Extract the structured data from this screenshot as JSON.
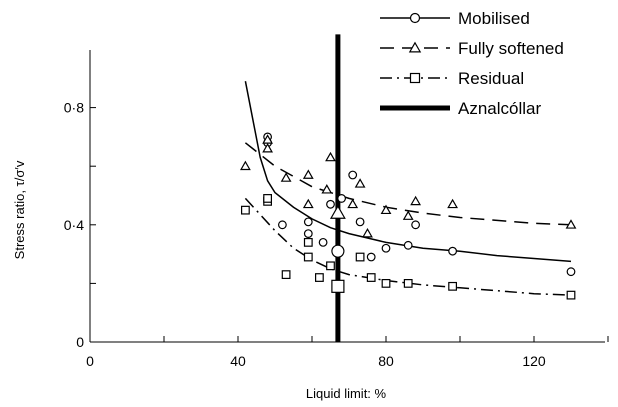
{
  "chart_data": {
    "type": "scatter",
    "xlabel": "Liquid limit: %",
    "ylabel": "Stress ratio, τ/σ′v",
    "xlim": [
      0,
      140
    ],
    "ylim": [
      0,
      1.0
    ],
    "x_ticks": [
      0,
      40,
      80,
      120
    ],
    "x_tick_labels": [
      "0",
      "40",
      "80",
      "120"
    ],
    "y_ticks": [
      0,
      0.4,
      0.8
    ],
    "y_tick_labels": [
      "0",
      "0·4",
      "0·8"
    ],
    "grid": false,
    "legend_position": "top-right",
    "series": [
      {
        "name": "Mobilised",
        "marker": "circle",
        "line_style": "solid",
        "points": [
          [
            48,
            0.7
          ],
          [
            48,
            0.68
          ],
          [
            52,
            0.4
          ],
          [
            59,
            0.41
          ],
          [
            59,
            0.37
          ],
          [
            63,
            0.34
          ],
          [
            65,
            0.47
          ],
          [
            68,
            0.49
          ],
          [
            71,
            0.57
          ],
          [
            73,
            0.41
          ],
          [
            76,
            0.29
          ],
          [
            80,
            0.32
          ],
          [
            86,
            0.33
          ],
          [
            88,
            0.4
          ],
          [
            98,
            0.31
          ],
          [
            130,
            0.24
          ]
        ],
        "curve": [
          [
            42,
            0.89
          ],
          [
            44,
            0.76
          ],
          [
            46,
            0.63
          ],
          [
            48,
            0.55
          ],
          [
            50,
            0.51
          ],
          [
            55,
            0.46
          ],
          [
            60,
            0.42
          ],
          [
            65,
            0.39
          ],
          [
            70,
            0.37
          ],
          [
            75,
            0.355
          ],
          [
            80,
            0.34
          ],
          [
            90,
            0.32
          ],
          [
            100,
            0.31
          ],
          [
            110,
            0.295
          ],
          [
            120,
            0.285
          ],
          [
            130,
            0.275
          ]
        ]
      },
      {
        "name": "Fully softened",
        "marker": "triangle",
        "line_style": "dashed",
        "points": [
          [
            42,
            0.6
          ],
          [
            48,
            0.69
          ],
          [
            48,
            0.66
          ],
          [
            53,
            0.56
          ],
          [
            59,
            0.57
          ],
          [
            59,
            0.47
          ],
          [
            64,
            0.52
          ],
          [
            65,
            0.63
          ],
          [
            71,
            0.47
          ],
          [
            73,
            0.54
          ],
          [
            75,
            0.37
          ],
          [
            80,
            0.45
          ],
          [
            86,
            0.43
          ],
          [
            88,
            0.48
          ],
          [
            98,
            0.47
          ],
          [
            130,
            0.4
          ]
        ],
        "curve": [
          [
            42,
            0.68
          ],
          [
            50,
            0.6
          ],
          [
            60,
            0.53
          ],
          [
            70,
            0.49
          ],
          [
            80,
            0.46
          ],
          [
            90,
            0.44
          ],
          [
            100,
            0.425
          ],
          [
            110,
            0.415
          ],
          [
            120,
            0.405
          ],
          [
            130,
            0.4
          ]
        ]
      },
      {
        "name": "Residual",
        "marker": "square",
        "line_style": "dash-dot",
        "points": [
          [
            42,
            0.45
          ],
          [
            48,
            0.48
          ],
          [
            48,
            0.49
          ],
          [
            53,
            0.23
          ],
          [
            59,
            0.34
          ],
          [
            59,
            0.29
          ],
          [
            62,
            0.22
          ],
          [
            65,
            0.26
          ],
          [
            73,
            0.29
          ],
          [
            76,
            0.22
          ],
          [
            80,
            0.2
          ],
          [
            86,
            0.2
          ],
          [
            98,
            0.19
          ],
          [
            130,
            0.16
          ]
        ],
        "curve": [
          [
            42,
            0.49
          ],
          [
            50,
            0.38
          ],
          [
            55,
            0.32
          ],
          [
            60,
            0.28
          ],
          [
            65,
            0.25
          ],
          [
            70,
            0.23
          ],
          [
            80,
            0.21
          ],
          [
            90,
            0.195
          ],
          [
            100,
            0.185
          ],
          [
            110,
            0.175
          ],
          [
            120,
            0.165
          ],
          [
            130,
            0.16
          ]
        ]
      }
    ],
    "highlight_points": [
      {
        "marker": "circle",
        "x": 67,
        "y": 0.31
      },
      {
        "marker": "triangle",
        "x": 67,
        "y": 0.44
      },
      {
        "marker": "square",
        "x": 67,
        "y": 0.19
      }
    ],
    "vertical_line": {
      "name": "Aznalcóllar",
      "x": 67,
      "y_range": [
        0,
        1.05
      ]
    }
  }
}
